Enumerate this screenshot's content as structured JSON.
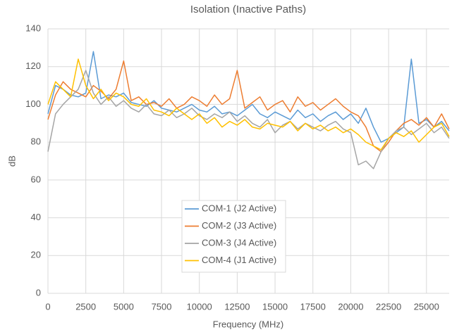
{
  "chart_data": {
    "type": "line",
    "title": "Isolation (Inactive Paths)",
    "x_label": "Frequency (MHz)",
    "y_label": "dB",
    "x": [
      0,
      500,
      1000,
      1500,
      2000,
      2500,
      3000,
      3500,
      4000,
      4500,
      5000,
      5500,
      6000,
      6500,
      7000,
      7500,
      8000,
      8500,
      9000,
      9500,
      10000,
      10500,
      11000,
      11500,
      12000,
      12500,
      13000,
      13500,
      14000,
      14500,
      15000,
      15500,
      16000,
      16500,
      17000,
      17500,
      18000,
      18500,
      19000,
      19500,
      20000,
      20500,
      21000,
      21500,
      22000,
      22500,
      23000,
      23500,
      24000,
      24500,
      25000,
      25500,
      26000,
      26500
    ],
    "series": [
      {
        "name": "COM-1 (J2 Active)",
        "color": "#5b9bd5",
        "values": [
          95,
          110,
          108,
          105,
          104,
          106,
          128,
          103,
          105,
          104,
          106,
          101,
          100,
          99,
          102,
          98,
          97,
          96,
          98,
          100,
          97,
          96,
          99,
          95,
          96,
          94,
          97,
          100,
          95,
          93,
          96,
          94,
          92,
          97,
          93,
          95,
          91,
          94,
          96,
          92,
          95,
          90,
          98,
          88,
          80,
          82,
          85,
          88,
          124,
          90,
          92,
          88,
          91,
          86
        ]
      },
      {
        "name": "COM-2 (J3 Active)",
        "color": "#ed7d31",
        "values": [
          92,
          105,
          112,
          108,
          106,
          104,
          110,
          107,
          103,
          108,
          123,
          102,
          104,
          100,
          101,
          99,
          103,
          98,
          100,
          104,
          102,
          99,
          105,
          100,
          103,
          118,
          98,
          101,
          104,
          97,
          100,
          102,
          96,
          104,
          99,
          101,
          97,
          100,
          103,
          99,
          96,
          94,
          88,
          78,
          75,
          80,
          86,
          90,
          92,
          89,
          93,
          88,
          95,
          87
        ]
      },
      {
        "name": "COM-3 (J4 Active)",
        "color": "#a5a5a5",
        "values": [
          75,
          95,
          100,
          104,
          108,
          118,
          106,
          100,
          104,
          99,
          102,
          98,
          96,
          100,
          95,
          94,
          97,
          93,
          95,
          98,
          94,
          92,
          95,
          93,
          96,
          91,
          94,
          90,
          88,
          92,
          85,
          89,
          91,
          87,
          90,
          88,
          86,
          89,
          91,
          87,
          85,
          68,
          70,
          66,
          75,
          82,
          86,
          88,
          84,
          87,
          90,
          85,
          88,
          82
        ]
      },
      {
        "name": "COM-4 (J1 Active)",
        "color": "#ffc000",
        "values": [
          100,
          112,
          108,
          104,
          124,
          110,
          103,
          108,
          102,
          106,
          104,
          100,
          99,
          103,
          97,
          96,
          94,
          98,
          95,
          92,
          95,
          90,
          93,
          88,
          91,
          89,
          92,
          88,
          87,
          90,
          89,
          88,
          91,
          86,
          90,
          87,
          89,
          86,
          88,
          85,
          87,
          84,
          80,
          78,
          76,
          82,
          85,
          83,
          86,
          80,
          84,
          88,
          90,
          83
        ]
      }
    ],
    "xlim": [
      0,
      26500
    ],
    "ylim": [
      0,
      140
    ],
    "xticks": [
      0,
      2500,
      5000,
      7500,
      10000,
      12500,
      15000,
      17500,
      20000,
      22500,
      25000
    ],
    "yticks": [
      0,
      20,
      40,
      60,
      80,
      100,
      120,
      140
    ],
    "grid": true,
    "legend": "center"
  }
}
